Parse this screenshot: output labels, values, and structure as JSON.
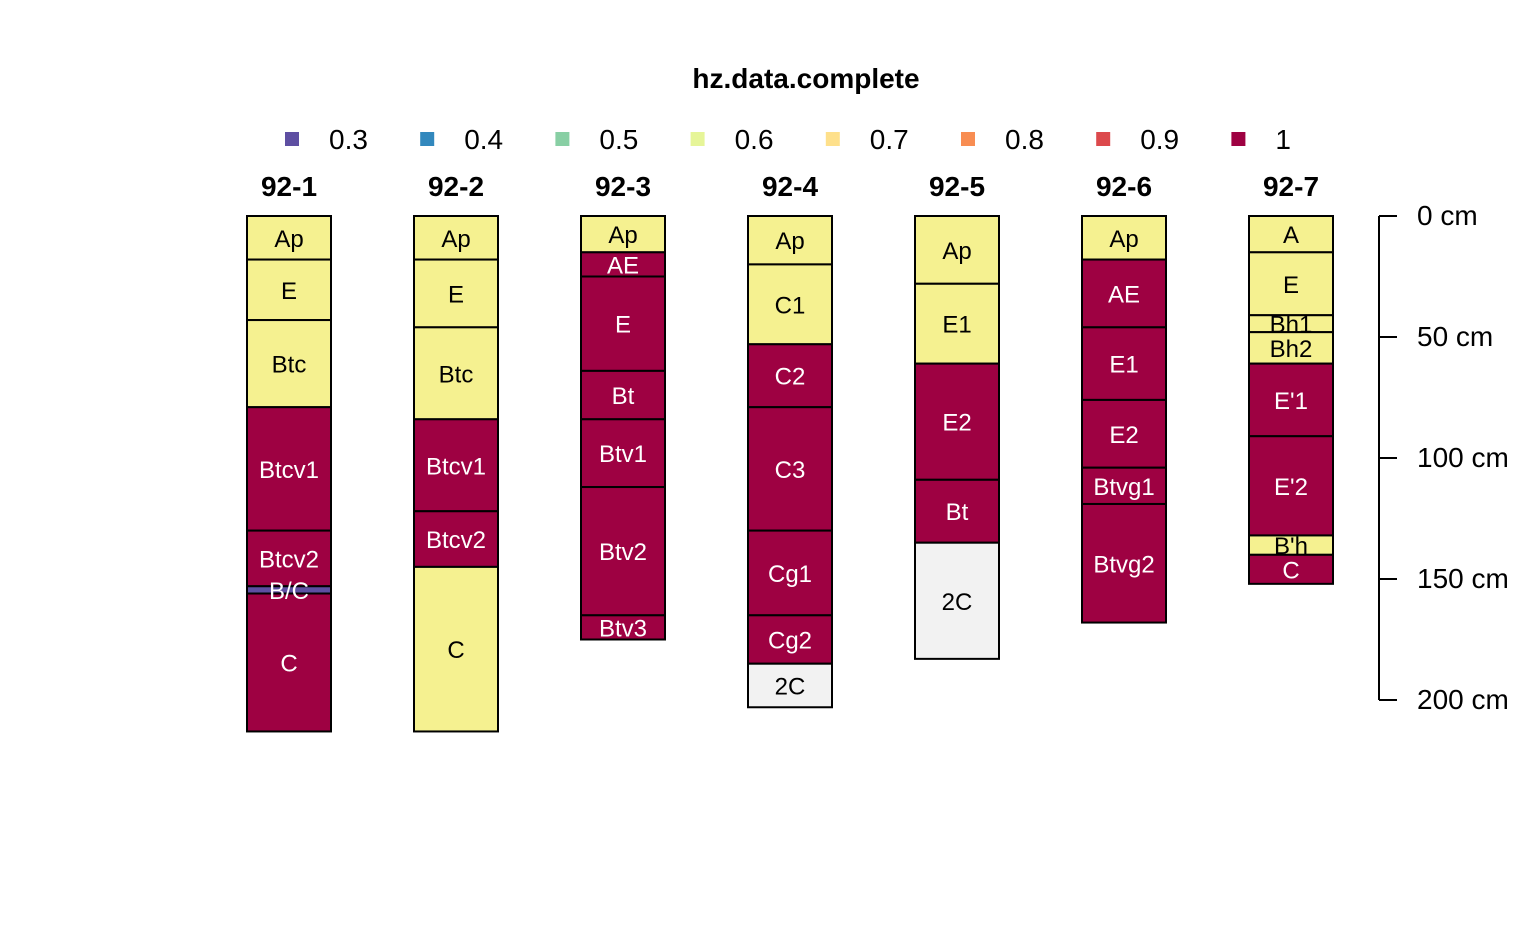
{
  "chart_data": {
    "type": "soil-profile",
    "title": "hz.data.complete",
    "legend": {
      "placement": "top",
      "entries": [
        {
          "label": "0.3",
          "color": "#5E4FA2"
        },
        {
          "label": "0.4",
          "color": "#3288BD"
        },
        {
          "label": "0.5",
          "color": "#88CFA4"
        },
        {
          "label": "0.6",
          "color": "#E6F598"
        },
        {
          "label": "0.7",
          "color": "#FEE08B"
        },
        {
          "label": "0.8",
          "color": "#F88D52"
        },
        {
          "label": "0.9",
          "color": "#DC494C"
        },
        {
          "label": "1",
          "color": "#9E0142"
        }
      ]
    },
    "axis": {
      "unit": "cm",
      "ylim": [
        0,
        200
      ],
      "ticks": [
        0,
        50,
        100,
        150,
        200
      ],
      "tick_labels": [
        "0 cm",
        "50 cm",
        "100 cm",
        "150 cm",
        "200 cm"
      ]
    },
    "colors": {
      "complete": "#9E0142",
      "partial": "#F5F190",
      "low": "#5E4FA2",
      "missing": "#F2F2F2"
    },
    "profiles": [
      {
        "id": "92-1",
        "horizons": [
          {
            "name": "Ap",
            "top": 0,
            "bottom": 18,
            "value": "partial"
          },
          {
            "name": "E",
            "top": 18,
            "bottom": 43,
            "value": "partial"
          },
          {
            "name": "Btc",
            "top": 43,
            "bottom": 79,
            "value": "partial"
          },
          {
            "name": "Btcv1",
            "top": 79,
            "bottom": 130,
            "value": "complete"
          },
          {
            "name": "Btcv2",
            "top": 130,
            "bottom": 153,
            "value": "complete"
          },
          {
            "name": "B/C",
            "top": 153,
            "bottom": 156,
            "value": "low"
          },
          {
            "name": "C",
            "top": 156,
            "bottom": 213,
            "value": "complete"
          }
        ]
      },
      {
        "id": "92-2",
        "horizons": [
          {
            "name": "Ap",
            "top": 0,
            "bottom": 18,
            "value": "partial"
          },
          {
            "name": "E",
            "top": 18,
            "bottom": 46,
            "value": "partial"
          },
          {
            "name": "Btc",
            "top": 46,
            "bottom": 84,
            "value": "partial"
          },
          {
            "name": "Btcv1",
            "top": 84,
            "bottom": 122,
            "value": "complete"
          },
          {
            "name": "Btcv2",
            "top": 122,
            "bottom": 145,
            "value": "complete"
          },
          {
            "name": "C",
            "top": 145,
            "bottom": 213,
            "value": "partial"
          }
        ]
      },
      {
        "id": "92-3",
        "horizons": [
          {
            "name": "Ap",
            "top": 0,
            "bottom": 15,
            "value": "partial"
          },
          {
            "name": "AE",
            "top": 15,
            "bottom": 25,
            "value": "complete"
          },
          {
            "name": "E",
            "top": 25,
            "bottom": 64,
            "value": "complete"
          },
          {
            "name": "Bt",
            "top": 64,
            "bottom": 84,
            "value": "complete"
          },
          {
            "name": "Btv1",
            "top": 84,
            "bottom": 112,
            "value": "complete"
          },
          {
            "name": "Btv2",
            "top": 112,
            "bottom": 165,
            "value": "complete"
          },
          {
            "name": "Btv3",
            "top": 165,
            "bottom": 175,
            "value": "complete"
          }
        ]
      },
      {
        "id": "92-4",
        "horizons": [
          {
            "name": "Ap",
            "top": 0,
            "bottom": 20,
            "value": "partial"
          },
          {
            "name": "C1",
            "top": 20,
            "bottom": 53,
            "value": "partial"
          },
          {
            "name": "C2",
            "top": 53,
            "bottom": 79,
            "value": "complete"
          },
          {
            "name": "C3",
            "top": 79,
            "bottom": 130,
            "value": "complete"
          },
          {
            "name": "Cg1",
            "top": 130,
            "bottom": 165,
            "value": "complete"
          },
          {
            "name": "Cg2",
            "top": 165,
            "bottom": 185,
            "value": "complete"
          },
          {
            "name": "2C",
            "top": 185,
            "bottom": 203,
            "value": "missing"
          }
        ]
      },
      {
        "id": "92-5",
        "horizons": [
          {
            "name": "Ap",
            "top": 0,
            "bottom": 28,
            "value": "partial"
          },
          {
            "name": "E1",
            "top": 28,
            "bottom": 61,
            "value": "partial"
          },
          {
            "name": "E2",
            "top": 61,
            "bottom": 109,
            "value": "complete"
          },
          {
            "name": "Bt",
            "top": 109,
            "bottom": 135,
            "value": "complete"
          },
          {
            "name": "2C",
            "top": 135,
            "bottom": 183,
            "value": "missing"
          }
        ]
      },
      {
        "id": "92-6",
        "horizons": [
          {
            "name": "Ap",
            "top": 0,
            "bottom": 18,
            "value": "partial"
          },
          {
            "name": "AE",
            "top": 18,
            "bottom": 46,
            "value": "complete"
          },
          {
            "name": "E1",
            "top": 46,
            "bottom": 76,
            "value": "complete"
          },
          {
            "name": "E2",
            "top": 76,
            "bottom": 104,
            "value": "complete"
          },
          {
            "name": "Btvg1",
            "top": 104,
            "bottom": 119,
            "value": "complete"
          },
          {
            "name": "Btvg2",
            "top": 119,
            "bottom": 168,
            "value": "complete"
          }
        ]
      },
      {
        "id": "92-7",
        "horizons": [
          {
            "name": "A",
            "top": 0,
            "bottom": 15,
            "value": "partial"
          },
          {
            "name": "E",
            "top": 15,
            "bottom": 41,
            "value": "partial"
          },
          {
            "name": "Bh1",
            "top": 41,
            "bottom": 48,
            "value": "partial"
          },
          {
            "name": "Bh2",
            "top": 48,
            "bottom": 61,
            "value": "partial"
          },
          {
            "name": "E'1",
            "top": 61,
            "bottom": 91,
            "value": "complete"
          },
          {
            "name": "E'2",
            "top": 91,
            "bottom": 132,
            "value": "complete"
          },
          {
            "name": "B'h",
            "top": 132,
            "bottom": 140,
            "value": "partial"
          },
          {
            "name": "C",
            "top": 140,
            "bottom": 152,
            "value": "complete"
          }
        ]
      }
    ]
  }
}
